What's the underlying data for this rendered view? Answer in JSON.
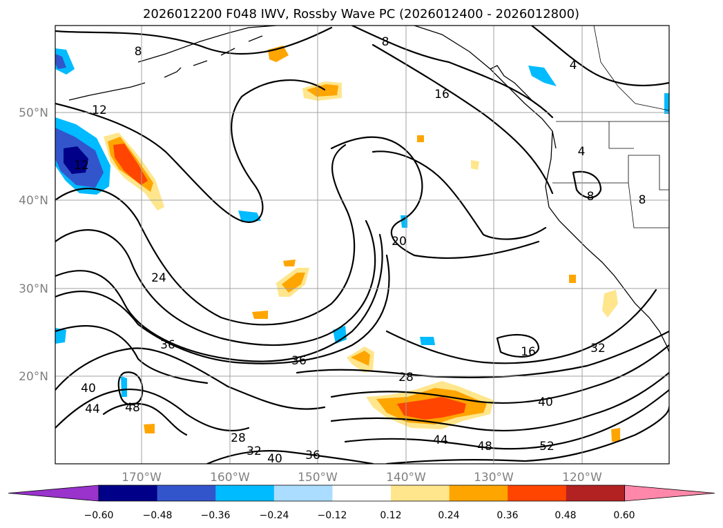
{
  "title": "2026012200 F048 IWV, Rossby Wave PC (2026012400 - 2026012800)",
  "map": {
    "lat_labels": [
      "50°N",
      "40°N",
      "30°N",
      "20°N"
    ],
    "lon_labels": [
      "170°W",
      "160°W",
      "150°W",
      "140°W",
      "130°W",
      "120°W"
    ],
    "contour_labels": [
      "8",
      "8",
      "4",
      "16",
      "12",
      "12",
      "20",
      "24",
      "36",
      "36",
      "28",
      "16",
      "32",
      "40",
      "40",
      "44",
      "48",
      "44",
      "48",
      "52",
      "28",
      "32",
      "40",
      "36",
      "4",
      "8",
      "8"
    ]
  },
  "colorbar": {
    "ticks": [
      "−0.60",
      "−0.48",
      "−0.36",
      "−0.24",
      "−0.12",
      "0.12",
      "0.24",
      "0.36",
      "0.48",
      "0.60"
    ],
    "colors": [
      "#9933cc",
      "#000088",
      "#3355cc",
      "#00bbff",
      "#aaddff",
      "#ffffff",
      "#ffe68c",
      "#ffa500",
      "#ff4500",
      "#b22222",
      "#ff88aa",
      "#ff88aa"
    ]
  }
}
